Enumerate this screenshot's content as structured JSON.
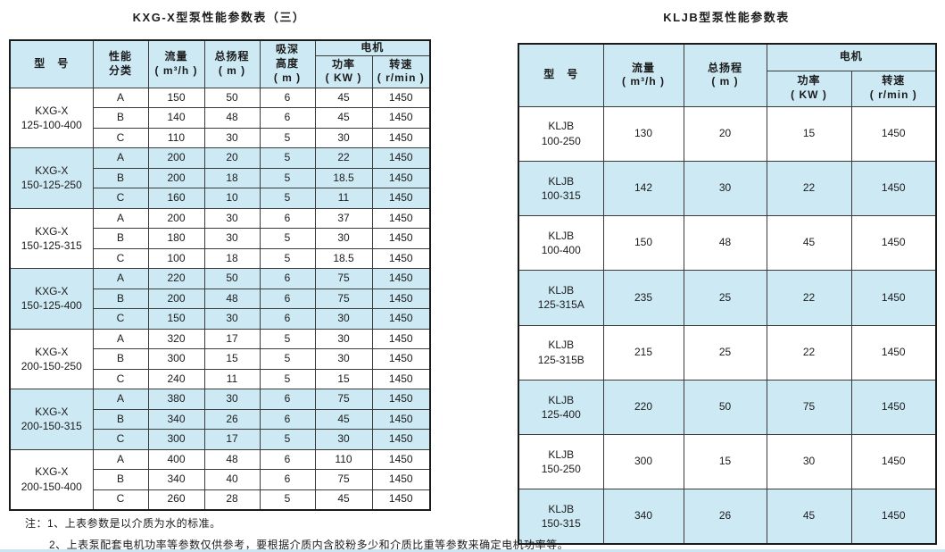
{
  "colors": {
    "shade_blue": "#cde9f4",
    "border": "#3a3a3a",
    "text": "#1b1b1b"
  },
  "left_table": {
    "title": "KXG-X型泵性能参数表（三）",
    "headers": {
      "model": "型　号",
      "cls": "性能\n分类",
      "flow": "流量\n( m³/h )",
      "head": "总扬程\n( m )",
      "suction": "吸深\n高度\n( m )",
      "motor": "电机",
      "power": "功率\n( KW )",
      "speed": "转速\n( r/min )"
    },
    "groups": [
      {
        "model": "KXG-X\n125-100-400",
        "shaded": false,
        "rows": [
          {
            "cls": "A",
            "flow": "150",
            "head": "50",
            "suction": "6",
            "power": "45",
            "speed": "1450"
          },
          {
            "cls": "B",
            "flow": "140",
            "head": "48",
            "suction": "6",
            "power": "45",
            "speed": "1450"
          },
          {
            "cls": "C",
            "flow": "110",
            "head": "30",
            "suction": "5",
            "power": "30",
            "speed": "1450"
          }
        ]
      },
      {
        "model": "KXG-X\n150-125-250",
        "shaded": true,
        "rows": [
          {
            "cls": "A",
            "flow": "200",
            "head": "20",
            "suction": "5",
            "power": "22",
            "speed": "1450"
          },
          {
            "cls": "B",
            "flow": "200",
            "head": "18",
            "suction": "5",
            "power": "18.5",
            "speed": "1450"
          },
          {
            "cls": "C",
            "flow": "160",
            "head": "10",
            "suction": "5",
            "power": "11",
            "speed": "1450"
          }
        ]
      },
      {
        "model": "KXG-X\n150-125-315",
        "shaded": false,
        "rows": [
          {
            "cls": "A",
            "flow": "200",
            "head": "30",
            "suction": "6",
            "power": "37",
            "speed": "1450"
          },
          {
            "cls": "B",
            "flow": "180",
            "head": "30",
            "suction": "5",
            "power": "30",
            "speed": "1450"
          },
          {
            "cls": "C",
            "flow": "100",
            "head": "18",
            "suction": "5",
            "power": "18.5",
            "speed": "1450"
          }
        ]
      },
      {
        "model": "KXG-X\n150-125-400",
        "shaded": true,
        "rows": [
          {
            "cls": "A",
            "flow": "220",
            "head": "50",
            "suction": "6",
            "power": "75",
            "speed": "1450"
          },
          {
            "cls": "B",
            "flow": "200",
            "head": "48",
            "suction": "6",
            "power": "75",
            "speed": "1450"
          },
          {
            "cls": "C",
            "flow": "150",
            "head": "30",
            "suction": "6",
            "power": "30",
            "speed": "1450"
          }
        ]
      },
      {
        "model": "KXG-X\n200-150-250",
        "shaded": false,
        "rows": [
          {
            "cls": "A",
            "flow": "320",
            "head": "17",
            "suction": "5",
            "power": "30",
            "speed": "1450"
          },
          {
            "cls": "B",
            "flow": "300",
            "head": "15",
            "suction": "5",
            "power": "30",
            "speed": "1450"
          },
          {
            "cls": "C",
            "flow": "240",
            "head": "11",
            "suction": "5",
            "power": "15",
            "speed": "1450"
          }
        ]
      },
      {
        "model": "KXG-X\n200-150-315",
        "shaded": true,
        "rows": [
          {
            "cls": "A",
            "flow": "380",
            "head": "30",
            "suction": "6",
            "power": "75",
            "speed": "1450"
          },
          {
            "cls": "B",
            "flow": "340",
            "head": "26",
            "suction": "6",
            "power": "45",
            "speed": "1450"
          },
          {
            "cls": "C",
            "flow": "300",
            "head": "17",
            "suction": "5",
            "power": "30",
            "speed": "1450"
          }
        ]
      },
      {
        "model": "KXG-X\n200-150-400",
        "shaded": false,
        "rows": [
          {
            "cls": "A",
            "flow": "400",
            "head": "48",
            "suction": "6",
            "power": "110",
            "speed": "1450"
          },
          {
            "cls": "B",
            "flow": "340",
            "head": "40",
            "suction": "6",
            "power": "75",
            "speed": "1450"
          },
          {
            "cls": "C",
            "flow": "260",
            "head": "28",
            "suction": "5",
            "power": "45",
            "speed": "1450"
          }
        ]
      }
    ],
    "notes": [
      "注：1、上表参数是以介质为水的标准。",
      "2、上表泵配套电机功率等参数仅供参考，要根据介质内含胶粉多少和介质比重等参数来确定电机功率等。"
    ]
  },
  "right_table": {
    "title": "KLJB型泵性能参数表",
    "headers": {
      "model": "型　号",
      "flow": "流量\n( m³/h )",
      "head": "总扬程\n( m )",
      "motor": "电机",
      "power": "功率\n( KW )",
      "speed": "转速\n( r/min )"
    },
    "rows": [
      {
        "model": "KLJB\n100-250",
        "flow": "130",
        "head": "20",
        "power": "15",
        "speed": "1450",
        "shaded": false
      },
      {
        "model": "KLJB\n100-315",
        "flow": "142",
        "head": "30",
        "power": "22",
        "speed": "1450",
        "shaded": true
      },
      {
        "model": "KLJB\n100-400",
        "flow": "150",
        "head": "48",
        "power": "45",
        "speed": "1450",
        "shaded": false
      },
      {
        "model": "KLJB\n125-315A",
        "flow": "235",
        "head": "25",
        "power": "22",
        "speed": "1450",
        "shaded": true
      },
      {
        "model": "KLJB\n125-315B",
        "flow": "215",
        "head": "25",
        "power": "22",
        "speed": "1450",
        "shaded": false
      },
      {
        "model": "KLJB\n125-400",
        "flow": "220",
        "head": "50",
        "power": "75",
        "speed": "1450",
        "shaded": true
      },
      {
        "model": "KLJB\n150-250",
        "flow": "300",
        "head": "15",
        "power": "30",
        "speed": "1450",
        "shaded": false
      },
      {
        "model": "KLJB\n150-315",
        "flow": "340",
        "head": "26",
        "power": "45",
        "speed": "1450",
        "shaded": true
      }
    ]
  }
}
